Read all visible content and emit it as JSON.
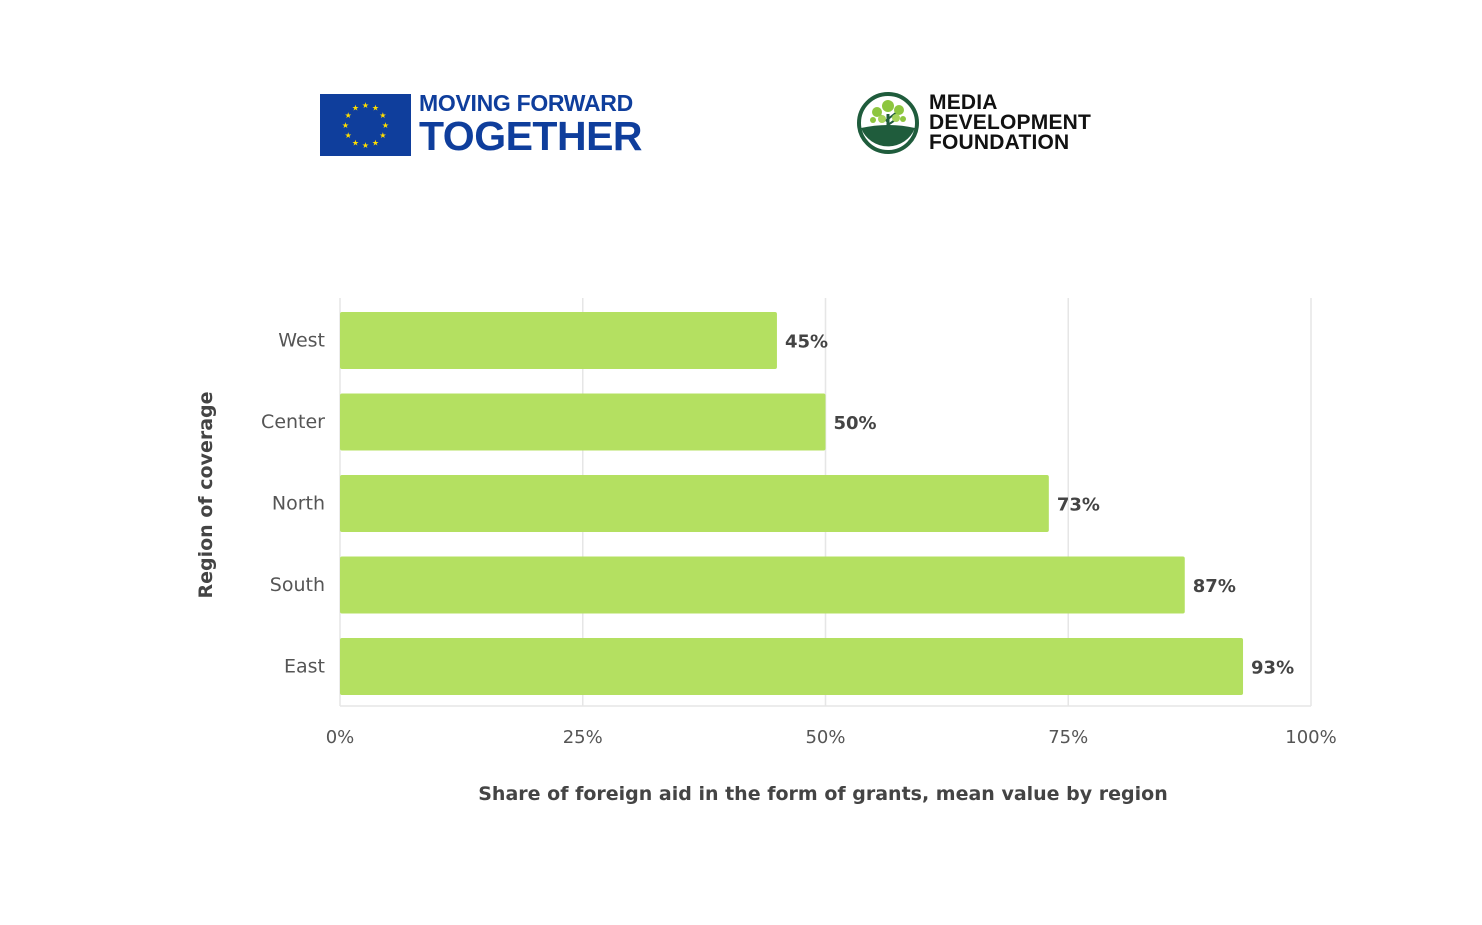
{
  "header": {
    "eu_logo": {
      "line1": "MOVING FORWARD",
      "line2": "TOGETHER",
      "flag_color": "#0f3e9c",
      "star_color": "#ffde00"
    },
    "mdf_logo": {
      "line1": "MEDIA",
      "line2": "DEVELOPMENT",
      "line3": "FOUNDATION",
      "emblem_color": "#1f5c3c",
      "leaf_color": "#8dc63f"
    }
  },
  "chart_data": {
    "type": "bar",
    "orientation": "horizontal",
    "categories": [
      "West",
      "Center",
      "North",
      "South",
      "East"
    ],
    "values": [
      45,
      50,
      73,
      87,
      93
    ],
    "value_labels": [
      "45%",
      "50%",
      "73%",
      "87%",
      "93%"
    ],
    "xlabel": "Share of foreign aid in the form of grants, mean value by region",
    "ylabel": "Region of coverage",
    "xlim": [
      0,
      100
    ],
    "x_ticks": [
      0,
      25,
      50,
      75,
      100
    ],
    "x_tick_labels": [
      "0%",
      "25%",
      "50%",
      "75%",
      "100%"
    ],
    "grid": true,
    "bar_color": "#b4e061",
    "grid_color": "#e6e6e6"
  }
}
